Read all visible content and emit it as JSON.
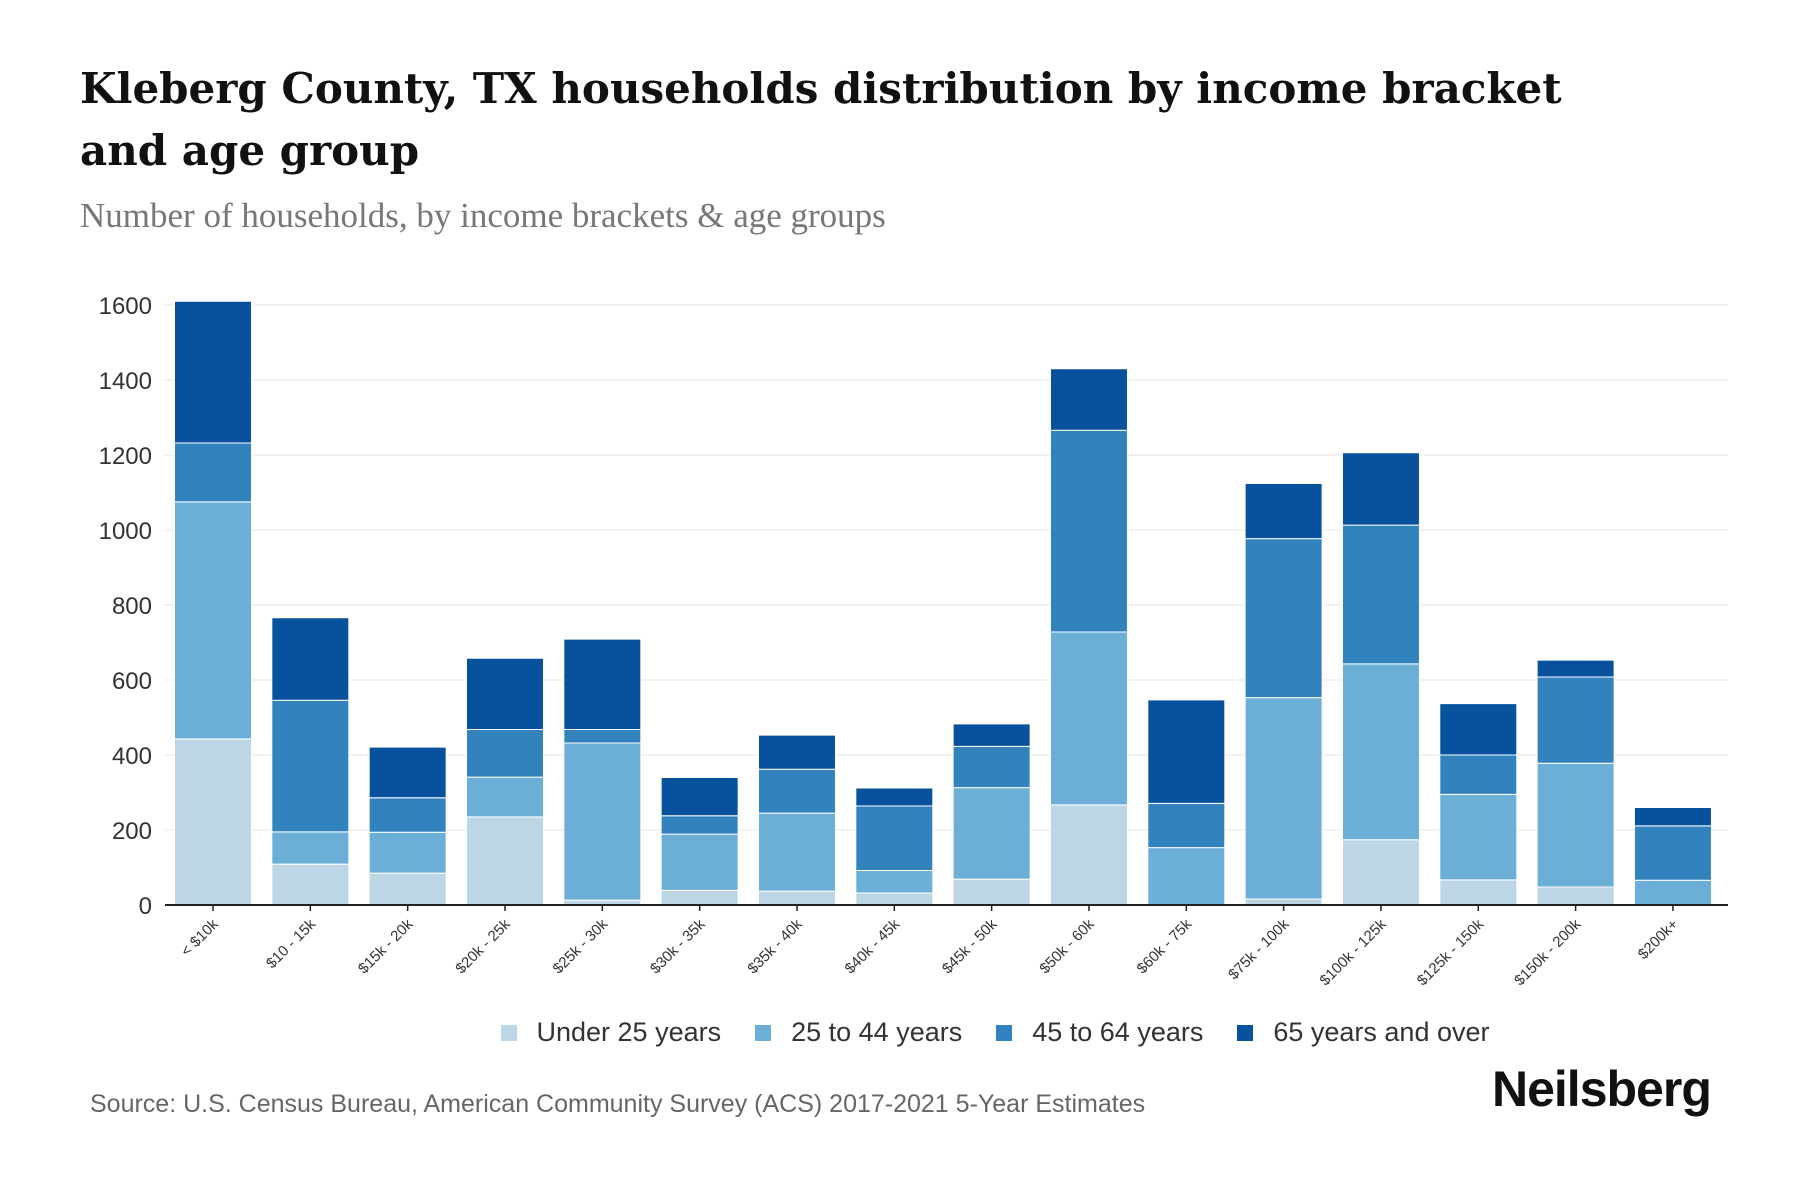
{
  "header": {
    "title": "Kleberg County, TX households distribution by income bracket and age group",
    "subtitle": "Number of households, by income brackets & age groups"
  },
  "footer": {
    "source": "Source: U.S. Census Bureau, American Community Survey (ACS) 2017-2021 5-Year Estimates",
    "logo": "Neilsberg"
  },
  "chart_data": {
    "type": "bar",
    "stacked": true,
    "title": "Kleberg County, TX households distribution by income bracket and age group",
    "subtitle": "Number of households, by income brackets & age groups",
    "xlabel": "",
    "ylabel": "",
    "ylim": [
      0,
      1600
    ],
    "yticks": [
      "0",
      "200",
      "400",
      "600",
      "800",
      "1000",
      "1200",
      "1400",
      "1600"
    ],
    "grid": true,
    "legend_position": "bottom",
    "categories": [
      "< $10k",
      "$10 - 15k",
      "$15k - 20k",
      "$20k - 25k",
      "$25k - 30k",
      "$30k - 35k",
      "$35k - 40k",
      "$40k - 45k",
      "$45k - 50k",
      "$50k - 60k",
      "$60k - 75k",
      "$75k - 100k",
      "$100k - 125k",
      "$125k - 150k",
      "$150k - 200k",
      "$200k+"
    ],
    "series": [
      {
        "name": "Under 25 years",
        "color": "#bcd6e6",
        "values": [
          443,
          109,
          85,
          235,
          13,
          39,
          37,
          32,
          69,
          267,
          0,
          16,
          174,
          67,
          48,
          0
        ]
      },
      {
        "name": "25 to 44 years",
        "color": "#6baed6",
        "values": [
          632,
          86,
          109,
          106,
          419,
          150,
          208,
          60,
          244,
          461,
          153,
          537,
          469,
          228,
          330,
          66
        ]
      },
      {
        "name": "45 to 64 years",
        "color": "#3282bd",
        "values": [
          157,
          351,
          92,
          127,
          36,
          49,
          117,
          172,
          110,
          538,
          118,
          424,
          370,
          105,
          230,
          145
        ]
      },
      {
        "name": "65 years and over",
        "color": "#08519c",
        "values": [
          378,
          220,
          135,
          190,
          241,
          102,
          91,
          48,
          60,
          164,
          276,
          147,
          193,
          137,
          45,
          49
        ]
      }
    ]
  }
}
